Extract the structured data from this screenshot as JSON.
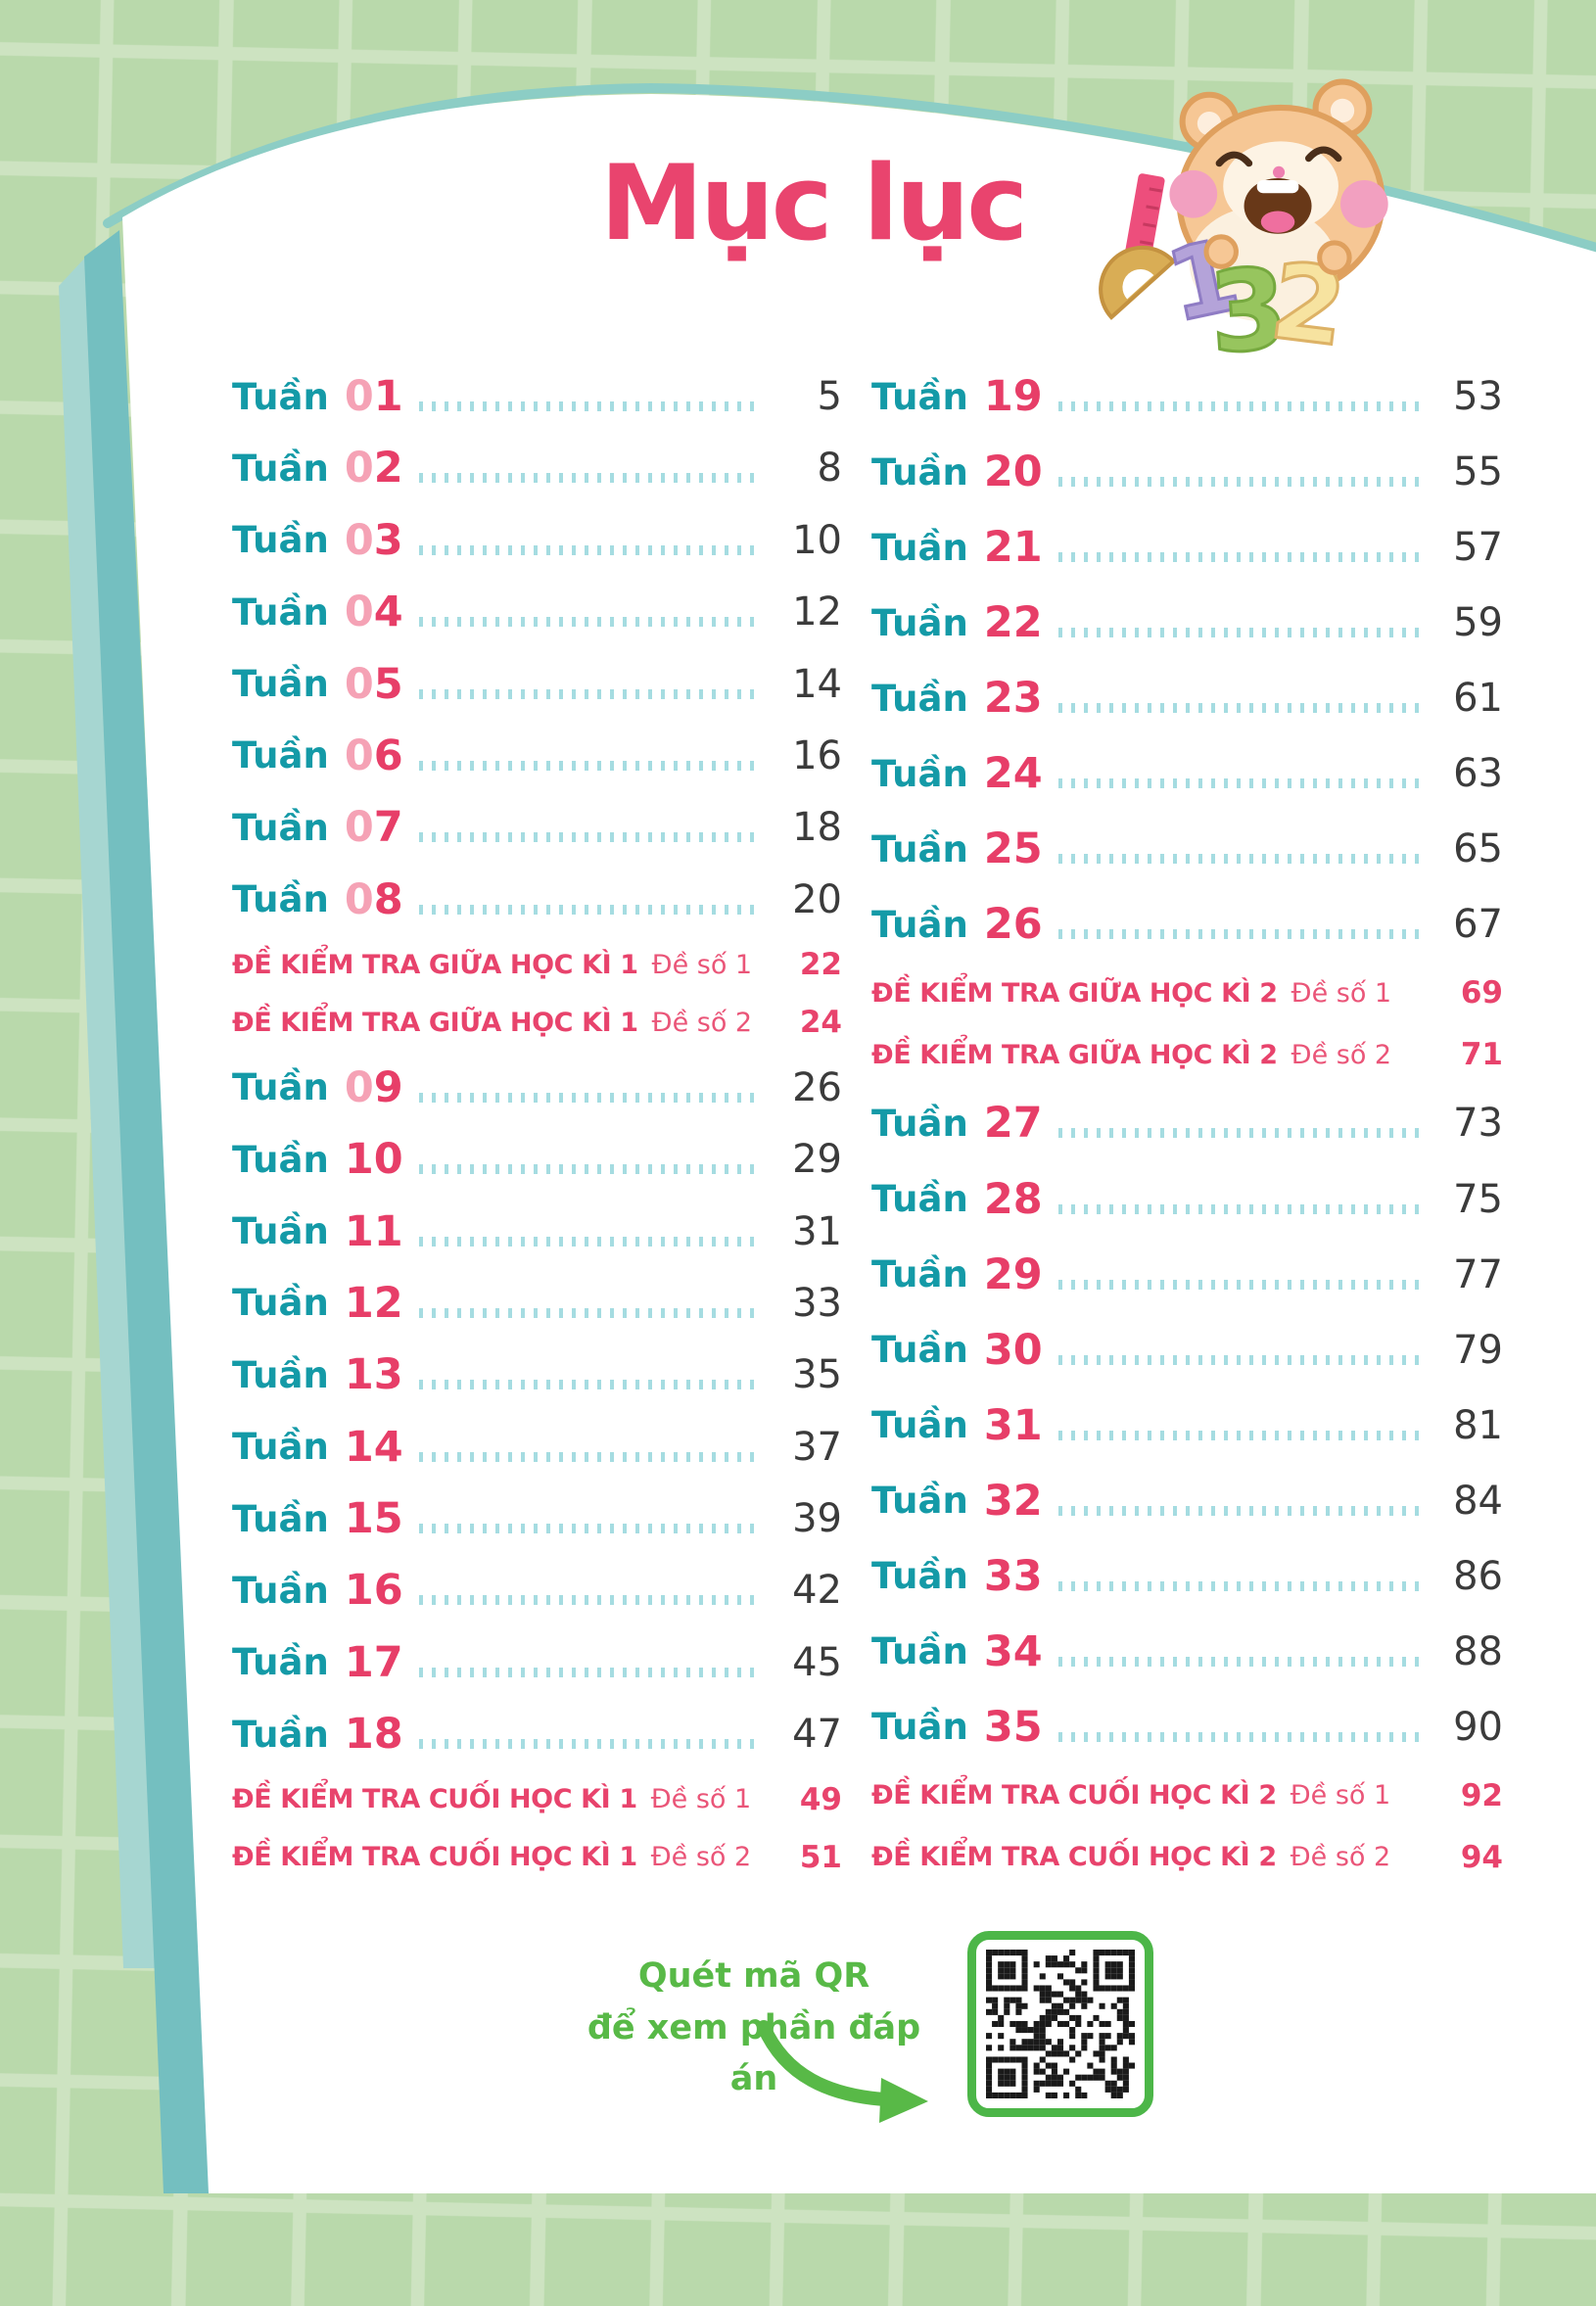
{
  "title": "Mục lục",
  "mascot": {
    "numbers": [
      "1",
      "3",
      "2"
    ]
  },
  "toc": {
    "left": [
      {
        "type": "week",
        "label": "Tuần",
        "number": "01",
        "page": "5"
      },
      {
        "type": "week",
        "label": "Tuần",
        "number": "02",
        "page": "8"
      },
      {
        "type": "week",
        "label": "Tuần",
        "number": "03",
        "page": "10"
      },
      {
        "type": "week",
        "label": "Tuần",
        "number": "04",
        "page": "12"
      },
      {
        "type": "week",
        "label": "Tuần",
        "number": "05",
        "page": "14"
      },
      {
        "type": "week",
        "label": "Tuần",
        "number": "06",
        "page": "16"
      },
      {
        "type": "week",
        "label": "Tuần",
        "number": "07",
        "page": "18"
      },
      {
        "type": "week",
        "label": "Tuần",
        "number": "08",
        "page": "20"
      },
      {
        "type": "exam",
        "label": "ĐỀ KIỂM TRA GIỮA HỌC KÌ 1",
        "sub": "Đề số 1",
        "page": "22"
      },
      {
        "type": "exam",
        "label": "ĐỀ KIỂM TRA GIỮA HỌC KÌ 1",
        "sub": "Đề số 2",
        "page": "24"
      },
      {
        "type": "week",
        "label": "Tuần",
        "number": "09",
        "page": "26"
      },
      {
        "type": "week",
        "label": "Tuần",
        "number": "10",
        "page": "29"
      },
      {
        "type": "week",
        "label": "Tuần",
        "number": "11",
        "page": "31"
      },
      {
        "type": "week",
        "label": "Tuần",
        "number": "12",
        "page": "33"
      },
      {
        "type": "week",
        "label": "Tuần",
        "number": "13",
        "page": "35"
      },
      {
        "type": "week",
        "label": "Tuần",
        "number": "14",
        "page": "37"
      },
      {
        "type": "week",
        "label": "Tuần",
        "number": "15",
        "page": "39"
      },
      {
        "type": "week",
        "label": "Tuần",
        "number": "16",
        "page": "42"
      },
      {
        "type": "week",
        "label": "Tuần",
        "number": "17",
        "page": "45"
      },
      {
        "type": "week",
        "label": "Tuần",
        "number": "18",
        "page": "47"
      },
      {
        "type": "exam",
        "label": "ĐỀ KIỂM TRA CUỐI HỌC KÌ 1",
        "sub": "Đề số 1",
        "page": "49"
      },
      {
        "type": "exam",
        "label": "ĐỀ KIỂM TRA CUỐI HỌC KÌ 1",
        "sub": "Đề số 2",
        "page": "51"
      }
    ],
    "right": [
      {
        "type": "week",
        "label": "Tuần",
        "number": "19",
        "page": "53"
      },
      {
        "type": "week",
        "label": "Tuần",
        "number": "20",
        "page": "55"
      },
      {
        "type": "week",
        "label": "Tuần",
        "number": "21",
        "page": "57"
      },
      {
        "type": "week",
        "label": "Tuần",
        "number": "22",
        "page": "59"
      },
      {
        "type": "week",
        "label": "Tuần",
        "number": "23",
        "page": "61"
      },
      {
        "type": "week",
        "label": "Tuần",
        "number": "24",
        "page": "63"
      },
      {
        "type": "week",
        "label": "Tuần",
        "number": "25",
        "page": "65"
      },
      {
        "type": "week",
        "label": "Tuần",
        "number": "26",
        "page": "67"
      },
      {
        "type": "exam",
        "label": "ĐỀ KIỂM TRA GIỮA HỌC KÌ 2",
        "sub": "Đề số 1",
        "page": "69"
      },
      {
        "type": "exam",
        "label": "ĐỀ KIỂM TRA GIỮA HỌC KÌ 2",
        "sub": "Đề số 2",
        "page": "71"
      },
      {
        "type": "week",
        "label": "Tuần",
        "number": "27",
        "page": "73"
      },
      {
        "type": "week",
        "label": "Tuần",
        "number": "28",
        "page": "75"
      },
      {
        "type": "week",
        "label": "Tuần",
        "number": "29",
        "page": "77"
      },
      {
        "type": "week",
        "label": "Tuần",
        "number": "30",
        "page": "79"
      },
      {
        "type": "week",
        "label": "Tuần",
        "number": "31",
        "page": "81"
      },
      {
        "type": "week",
        "label": "Tuần",
        "number": "32",
        "page": "84"
      },
      {
        "type": "week",
        "label": "Tuần",
        "number": "33",
        "page": "86"
      },
      {
        "type": "week",
        "label": "Tuần",
        "number": "34",
        "page": "88"
      },
      {
        "type": "week",
        "label": "Tuần",
        "number": "35",
        "page": "90"
      },
      {
        "type": "exam",
        "label": "ĐỀ KIỂM TRA CUỐI HỌC KÌ 2",
        "sub": "Đề số 1",
        "page": "92"
      },
      {
        "type": "exam",
        "label": "ĐỀ KIỂM TRA CUỐI HỌC KÌ 2",
        "sub": "Đề số 2",
        "page": "94"
      }
    ]
  },
  "footer": {
    "caption_line1": "Quét mã QR",
    "caption_line2": "để xem phần đáp án"
  },
  "colors": {
    "title": "#e9446e",
    "week_label": "#149aa7",
    "week_number": "#e73e68",
    "week_number_light": "#f5a2b5",
    "exam": "#e8436c",
    "exam_sub": "#ea5578",
    "dots": "#a5dce1",
    "page_number": "#3b3b3b",
    "green": "#58b947",
    "qr_border": "#4cb648",
    "bg_tile": "#b9d9ab",
    "bg_gutter": "#cde3c1",
    "page_edge_front": "#74bfc0",
    "page_edge_back": "#a6d6d1",
    "page_curve": "#8ccdc5",
    "page_white": "#ffffff"
  }
}
